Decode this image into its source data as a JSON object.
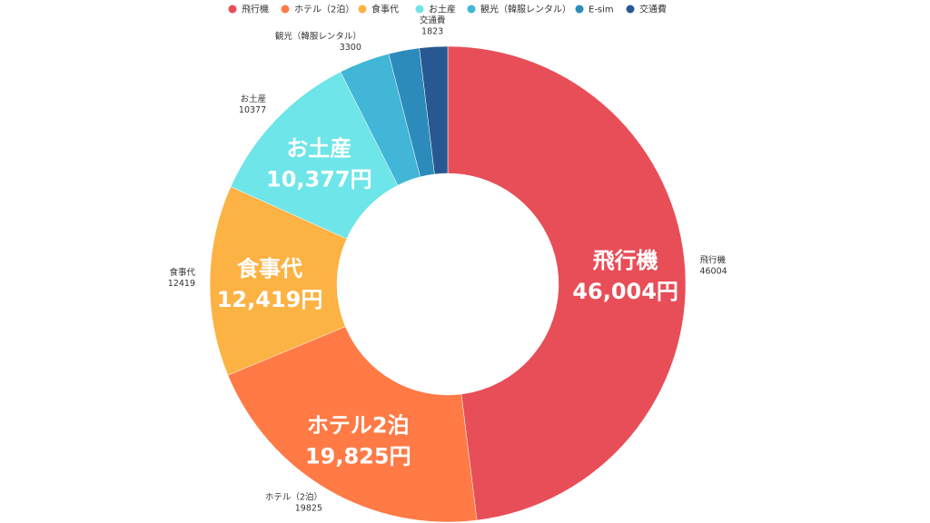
{
  "chart_data": {
    "type": "pie",
    "donut": true,
    "legend_position": "top",
    "series": [
      {
        "name": "飛行機",
        "value": 46004,
        "outer_name": "飛行機",
        "outer_value": "46004",
        "inner_name": "飛行機",
        "inner_value": "46,004円",
        "color": "#E84E58"
      },
      {
        "name": "ホテル（2泊）",
        "value": 19825,
        "outer_name": "ホテル（2泊）",
        "outer_value": "19825",
        "inner_name": "ホテル2泊",
        "inner_value": "19,825円",
        "color": "#FF7A45"
      },
      {
        "name": "食事代",
        "value": 12419,
        "outer_name": "食事代",
        "outer_value": "12419",
        "inner_name": "食事代",
        "inner_value": "12,419円",
        "color": "#FDB244"
      },
      {
        "name": "お土産",
        "value": 10377,
        "outer_name": "お土産",
        "outer_value": "10377",
        "inner_name": "お土産",
        "inner_value": "10,377円",
        "color": "#6EE5E8"
      },
      {
        "name": "観光（韓服レンタル）",
        "value": 3300,
        "outer_name": "観光（韓服レンタル）",
        "outer_value": "3300",
        "inner_name": "",
        "inner_value": "",
        "color": "#41B6D6"
      },
      {
        "name": "E-sim",
        "value": 2000,
        "outer_name": "",
        "outer_value": "",
        "inner_name": "",
        "inner_value": "",
        "color": "#2C8BBA"
      },
      {
        "name": "交通費",
        "value": 1823,
        "outer_name": "交通費",
        "outer_value": "1823",
        "inner_name": "",
        "inner_value": "",
        "color": "#285891"
      }
    ]
  }
}
